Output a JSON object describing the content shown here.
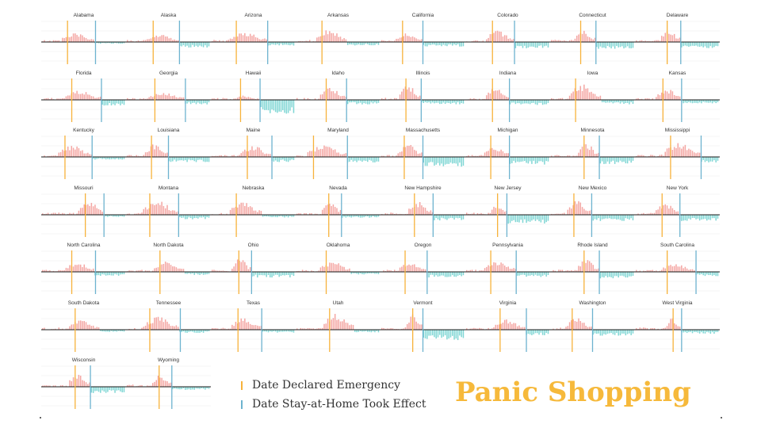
{
  "page": {
    "title": "Panic Shopping",
    "title_color": "#F6B93B",
    "legend": [
      {
        "label": "Date Declared Emergency",
        "color": "#F7B23B"
      },
      {
        "label": "Date Stay-at-Home Took Effect",
        "color": "#6DB3CF"
      }
    ]
  },
  "chart_data": {
    "type": "bar",
    "layout": "small-multiples",
    "columns": 8,
    "positive_color": "#F4A6A3",
    "negative_color": "#7FD6D4",
    "emergency_color": "#F7B23B",
    "stayhome_color": "#6DB3CF",
    "grid": true,
    "legend_position": "bottom-center",
    "panels": [
      {
        "name": "Alabama",
        "emergency": 0.31,
        "stayhome": 0.64,
        "peak": 0.55,
        "low": 0.22,
        "after": 0.3
      },
      {
        "name": "Alaska",
        "emergency": 0.32,
        "stayhome": 0.63,
        "peak": 0.45,
        "low": 0.45,
        "after": 0.5
      },
      {
        "name": "Arizona",
        "emergency": 0.3,
        "stayhome": 0.67,
        "peak": 0.6,
        "low": 0.35,
        "after": 0.4
      },
      {
        "name": "Arkansas",
        "emergency": 0.31,
        "stayhome": 0.0,
        "peak": 0.75,
        "low": 0.35,
        "after": 0.4
      },
      {
        "name": "California",
        "emergency": 0.26,
        "stayhome": 0.5,
        "peak": 0.55,
        "low": 0.45,
        "after": 0.4
      },
      {
        "name": "Colorado",
        "emergency": 0.32,
        "stayhome": 0.58,
        "peak": 0.65,
        "low": 0.55,
        "after": 0.45
      },
      {
        "name": "Connecticut",
        "emergency": 0.36,
        "stayhome": 0.54,
        "peak": 0.7,
        "low": 0.6,
        "after": 0.45
      },
      {
        "name": "Delaware",
        "emergency": 0.38,
        "stayhome": 0.54,
        "peak": 0.75,
        "low": 0.55,
        "after": 0.45
      },
      {
        "name": "Florida",
        "emergency": 0.36,
        "stayhome": 0.71,
        "peak": 0.55,
        "low": 0.45,
        "after": 0.5
      },
      {
        "name": "Georgia",
        "emergency": 0.34,
        "stayhome": 0.7,
        "peak": 0.45,
        "low": 0.4,
        "after": 0.45
      },
      {
        "name": "Hawaii",
        "emergency": 0.35,
        "stayhome": 0.58,
        "peak": 0.25,
        "low": 0.95,
        "after": 0.6
      },
      {
        "name": "Idaho",
        "emergency": 0.36,
        "stayhome": 0.6,
        "peak": 0.75,
        "low": 0.4,
        "after": 0.45
      },
      {
        "name": "Illinois",
        "emergency": 0.3,
        "stayhome": 0.48,
        "peak": 0.85,
        "low": 0.45,
        "after": 0.4
      },
      {
        "name": "Indiana",
        "emergency": 0.32,
        "stayhome": 0.52,
        "peak": 0.7,
        "low": 0.45,
        "after": 0.45
      },
      {
        "name": "Iowa",
        "emergency": 0.3,
        "stayhome": 0.0,
        "peak": 0.9,
        "low": 0.4,
        "after": 0.45
      },
      {
        "name": "Kansas",
        "emergency": 0.33,
        "stayhome": 0.55,
        "peak": 0.65,
        "low": 0.35,
        "after": 0.4
      },
      {
        "name": "Kentucky",
        "emergency": 0.28,
        "stayhome": 0.6,
        "peak": 0.7,
        "low": 0.3,
        "after": 0.35
      },
      {
        "name": "Louisiana",
        "emergency": 0.3,
        "stayhome": 0.5,
        "peak": 0.75,
        "low": 0.45,
        "after": 0.45
      },
      {
        "name": "Maine",
        "emergency": 0.43,
        "stayhome": 0.72,
        "peak": 0.65,
        "low": 0.45,
        "after": 0.45
      },
      {
        "name": "Maryland",
        "emergency": 0.21,
        "stayhome": 0.61,
        "peak": 0.7,
        "low": 0.5,
        "after": 0.45
      },
      {
        "name": "Massachusetts",
        "emergency": 0.28,
        "stayhome": 0.5,
        "peak": 0.75,
        "low": 0.7,
        "after": 0.55
      },
      {
        "name": "Michigan",
        "emergency": 0.3,
        "stayhome": 0.52,
        "peak": 0.65,
        "low": 0.6,
        "after": 0.5
      },
      {
        "name": "Minnesota",
        "emergency": 0.4,
        "stayhome": 0.58,
        "peak": 0.8,
        "low": 0.65,
        "after": 0.45
      },
      {
        "name": "Mississippi",
        "emergency": 0.42,
        "stayhome": 0.78,
        "peak": 0.85,
        "low": 0.6,
        "after": 0.4
      },
      {
        "name": "Missouri",
        "emergency": 0.52,
        "stayhome": 0.74,
        "peak": 0.9,
        "low": 0.3,
        "after": 0.3
      },
      {
        "name": "Montana",
        "emergency": 0.28,
        "stayhome": 0.62,
        "peak": 0.85,
        "low": 0.45,
        "after": 0.4
      },
      {
        "name": "Nebraska",
        "emergency": 0.3,
        "stayhome": 0.0,
        "peak": 0.75,
        "low": 0.3,
        "after": 0.35
      },
      {
        "name": "Nevada",
        "emergency": 0.39,
        "stayhome": 0.54,
        "peak": 0.8,
        "low": 0.35,
        "after": 0.35
      },
      {
        "name": "New Hampshire",
        "emergency": 0.4,
        "stayhome": 0.62,
        "peak": 0.75,
        "low": 0.5,
        "after": 0.45
      },
      {
        "name": "New Jersey",
        "emergency": 0.38,
        "stayhome": 0.49,
        "peak": 0.65,
        "low": 0.7,
        "after": 0.5
      },
      {
        "name": "New Mexico",
        "emergency": 0.28,
        "stayhome": 0.49,
        "peak": 0.85,
        "low": 0.55,
        "after": 0.45
      },
      {
        "name": "New York",
        "emergency": 0.32,
        "stayhome": 0.53,
        "peak": 0.7,
        "low": 0.55,
        "after": 0.45
      },
      {
        "name": "North Carolina",
        "emergency": 0.36,
        "stayhome": 0.64,
        "peak": 0.55,
        "low": 0.4,
        "after": 0.4
      },
      {
        "name": "North Dakota",
        "emergency": 0.4,
        "stayhome": 0.0,
        "peak": 0.6,
        "low": 0.35,
        "after": 0.35
      },
      {
        "name": "Ohio",
        "emergency": 0.33,
        "stayhome": 0.48,
        "peak": 0.8,
        "low": 0.5,
        "after": 0.45
      },
      {
        "name": "Oklahoma",
        "emergency": 0.36,
        "stayhome": 0.0,
        "peak": 0.6,
        "low": 0.3,
        "after": 0.35
      },
      {
        "name": "Oregon",
        "emergency": 0.29,
        "stayhome": 0.55,
        "peak": 0.55,
        "low": 0.5,
        "after": 0.45
      },
      {
        "name": "Pennsylvania",
        "emergency": 0.3,
        "stayhome": 0.6,
        "peak": 0.65,
        "low": 0.45,
        "after": 0.45
      },
      {
        "name": "Rhode Island",
        "emergency": 0.4,
        "stayhome": 0.58,
        "peak": 0.7,
        "low": 0.6,
        "after": 0.45
      },
      {
        "name": "South Carolina",
        "emergency": 0.38,
        "stayhome": 0.72,
        "peak": 0.45,
        "low": 0.45,
        "after": 0.4
      },
      {
        "name": "South Dakota",
        "emergency": 0.4,
        "stayhome": 0.0,
        "peak": 0.55,
        "low": 0.3,
        "after": 0.3
      },
      {
        "name": "Tennessee",
        "emergency": 0.28,
        "stayhome": 0.64,
        "peak": 0.75,
        "low": 0.35,
        "after": 0.35
      },
      {
        "name": "Texas",
        "emergency": 0.32,
        "stayhome": 0.6,
        "peak": 0.7,
        "low": 0.35,
        "after": 0.35
      },
      {
        "name": "Utah",
        "emergency": 0.4,
        "stayhome": 0.0,
        "peak": 0.95,
        "low": 0.3,
        "after": 0.35
      },
      {
        "name": "Vermont",
        "emergency": 0.38,
        "stayhome": 0.5,
        "peak": 0.9,
        "low": 0.75,
        "after": 0.55
      },
      {
        "name": "Virginia",
        "emergency": 0.41,
        "stayhome": 0.72,
        "peak": 0.6,
        "low": 0.5,
        "after": 0.45
      },
      {
        "name": "Washington",
        "emergency": 0.26,
        "stayhome": 0.5,
        "peak": 0.7,
        "low": 0.55,
        "after": 0.45
      },
      {
        "name": "West Virginia",
        "emergency": 0.45,
        "stayhome": 0.55,
        "peak": 0.7,
        "low": 0.4,
        "after": 0.4
      },
      {
        "name": "Wisconsin",
        "emergency": 0.4,
        "stayhome": 0.58,
        "peak": 0.75,
        "low": 0.55,
        "after": 0.45
      },
      {
        "name": "Wyoming",
        "emergency": 0.39,
        "stayhome": 0.54,
        "peak": 0.7,
        "low": 0.35,
        "after": 0.35
      }
    ]
  }
}
